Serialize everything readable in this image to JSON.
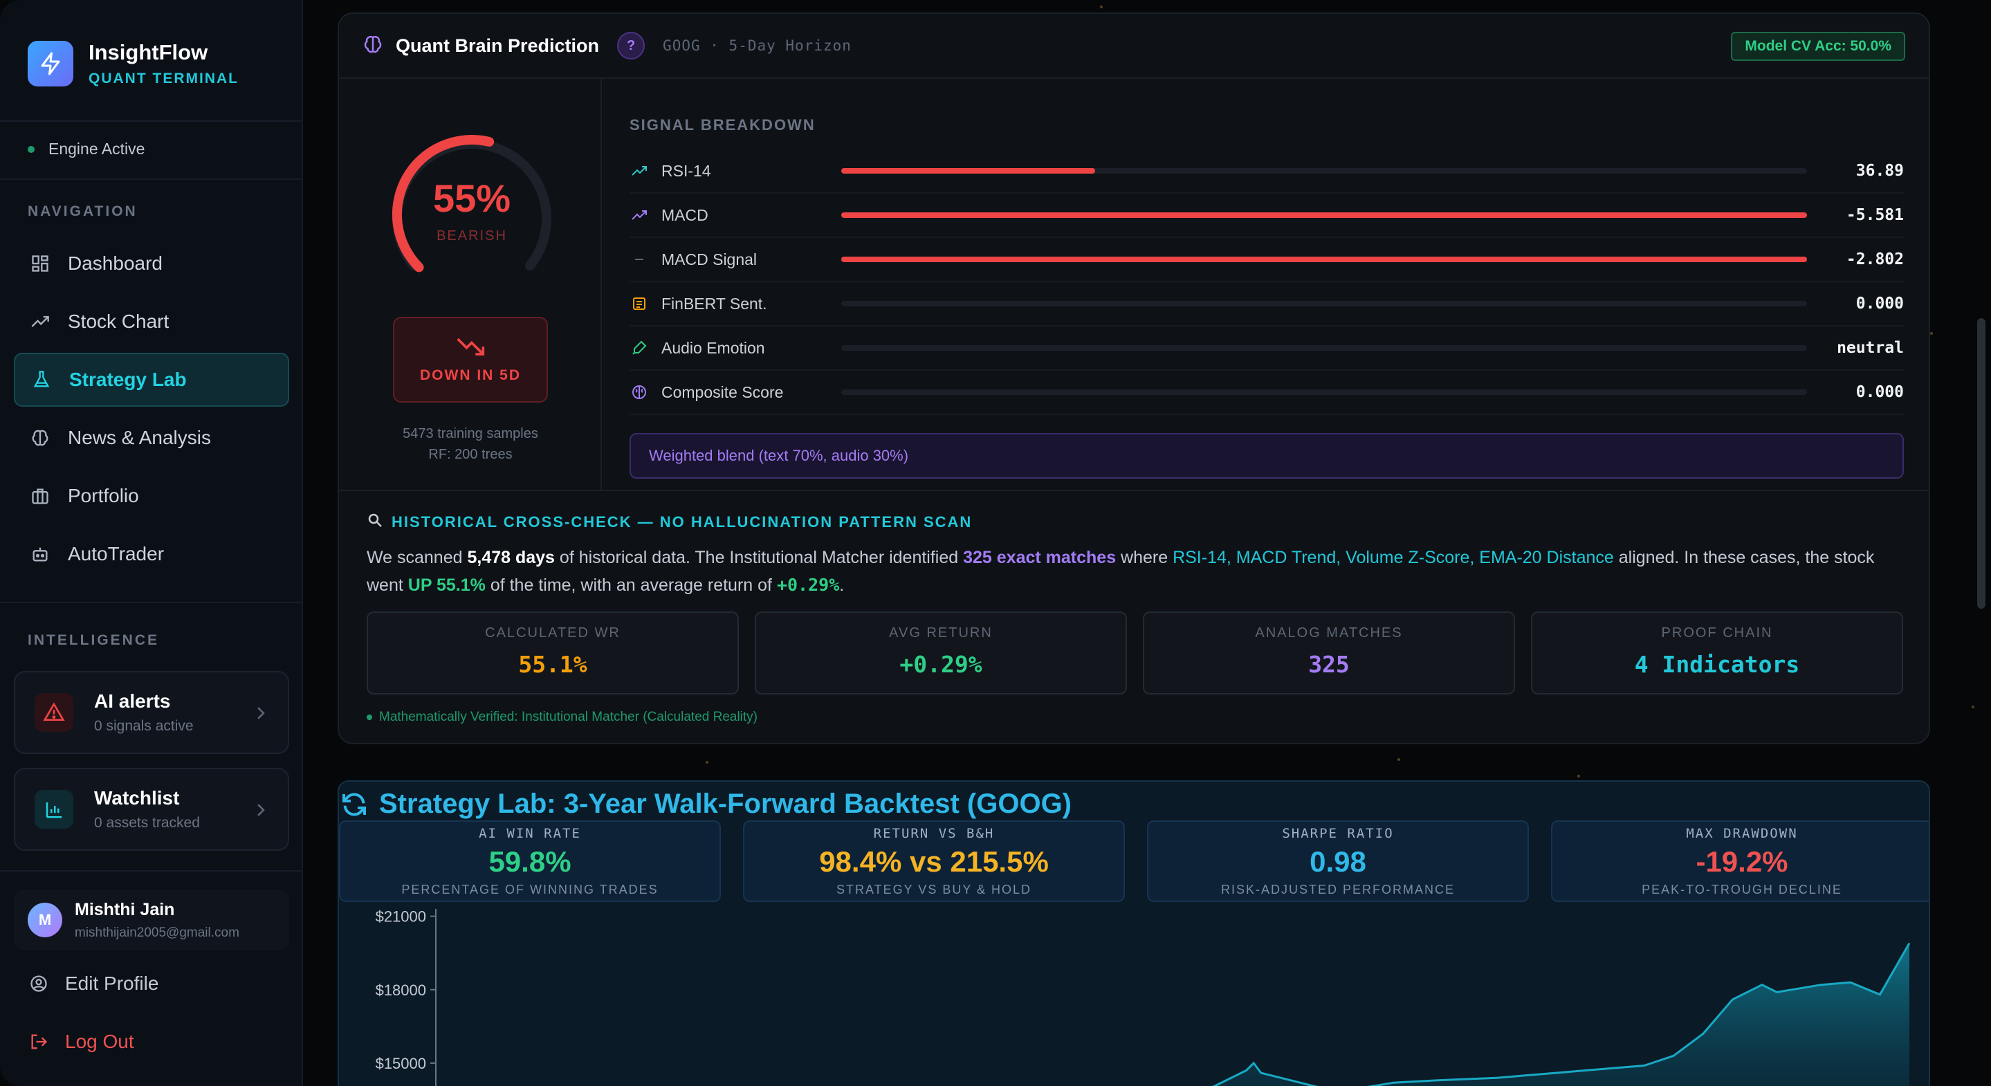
{
  "sidebar": {
    "brand_name": "InsightFlow",
    "brand_sub": "QUANT TERMINAL",
    "engine_status": "Engine Active",
    "nav_label": "NAVIGATION",
    "nav": [
      {
        "label": "Dashboard",
        "icon": "grid-icon"
      },
      {
        "label": "Stock Chart",
        "icon": "trend-icon"
      },
      {
        "label": "Strategy Lab",
        "icon": "flask-icon"
      },
      {
        "label": "News & Analysis",
        "icon": "brain-icon"
      },
      {
        "label": "Portfolio",
        "icon": "briefcase-icon"
      },
      {
        "label": "AutoTrader",
        "icon": "bot-icon"
      }
    ],
    "intel_label": "INTELLIGENCE",
    "alerts": {
      "title": "AI alerts",
      "sub": "0 signals active"
    },
    "watchlist": {
      "title": "Watchlist",
      "sub": "0 assets tracked"
    },
    "user": {
      "initial": "M",
      "name": "Mishthi Jain",
      "email": "mishthijain2005@gmail.com"
    },
    "edit_profile": "Edit Profile",
    "logout": "Log Out"
  },
  "prediction": {
    "title": "Quant Brain Prediction",
    "help": "?",
    "subtitle": "GOOG · 5-Day Horizon",
    "accuracy": "Model CV Acc: 50.0%",
    "gauge_pct": "55%",
    "gauge_fraction": 0.55,
    "gauge_label": "BEARISH",
    "direction": "DOWN IN 5D",
    "training_samples": "5473 training samples",
    "rf_trees": "RF: 200 trees",
    "signal_title": "SIGNAL BREAKDOWN",
    "signals": [
      {
        "name": "RSI-14",
        "value": "36.89",
        "fill": 0.2626,
        "icon": "trend-up-icon",
        "color": "#2ec7c9"
      },
      {
        "name": "MACD",
        "value": "-5.581",
        "fill": 1.0,
        "icon": "trend-up-icon",
        "color": "#a47cf5"
      },
      {
        "name": "MACD Signal",
        "value": "-2.802",
        "fill": 1.0,
        "icon": "minus-icon",
        "color": "#5d6674"
      },
      {
        "name": "FinBERT Sent.",
        "value": "0.000",
        "fill": 0,
        "icon": "newspaper-icon",
        "color": "#f59e0b"
      },
      {
        "name": "Audio Emotion",
        "value": "neutral",
        "fill": 0,
        "icon": "mic-icon",
        "color": "#2ecf86"
      },
      {
        "name": "Composite Score",
        "value": "0.000",
        "fill": 0,
        "icon": "brain-icon",
        "color": "#a47cf5"
      }
    ],
    "blend": "Weighted blend (text 70%, audio 30%)"
  },
  "history": {
    "title": "HISTORICAL CROSS-CHECK — NO HALLUCINATION PATTERN SCAN",
    "t1": "We scanned ",
    "days": "5,478 days",
    "t2": " of historical data. The Institutional Matcher identified ",
    "matches": "325 exact matches",
    "t3": " where ",
    "indicators": "RSI-14, MACD Trend, Volume Z-Score, EMA-20 Distance",
    "t4": " aligned. In these cases, the stock went ",
    "up": "UP 55.1%",
    "t5": " of the time, with an average return of ",
    "avg": "+0.29%",
    "t6": ".",
    "stats": [
      {
        "label": "CALCULATED WR",
        "value": "55.1%",
        "color": "#f59e0b"
      },
      {
        "label": "AVG RETURN",
        "value": "+0.29%",
        "color": "#2ecf86"
      },
      {
        "label": "ANALOG MATCHES",
        "value": "325",
        "color": "#a47cf5"
      },
      {
        "label": "PROOF CHAIN",
        "value": "4 Indicators",
        "color": "#22c8d9"
      }
    ],
    "verified": "Mathematically Verified: Institutional Matcher (Calculated Reality)"
  },
  "lab": {
    "title": "Strategy Lab: 3-Year Walk-Forward Backtest (GOOG)",
    "kpis": [
      {
        "label": "AI WIN RATE",
        "value": "59.8%",
        "desc": "PERCENTAGE OF WINNING TRADES",
        "color": "#2ecf86"
      },
      {
        "label": "RETURN VS B&H",
        "value": "98.4% vs 215.5%",
        "desc": "STRATEGY VS BUY & HOLD",
        "color": "#f5b324"
      },
      {
        "label": "SHARPE RATIO",
        "value": "0.98",
        "desc": "RISK-ADJUSTED PERFORMANCE",
        "color": "#2fb8e8"
      },
      {
        "label": "MAX DRAWDOWN",
        "value": "-19.2%",
        "desc": "PEAK-TO-TROUGH DECLINE",
        "color": "#f05252"
      }
    ]
  },
  "chart_data": {
    "type": "area",
    "title": "",
    "xlabel": "",
    "ylabel": "",
    "y_ticks": [
      "$21000",
      "$18000",
      "$15000"
    ],
    "y_tick_values": [
      21000,
      18000,
      15000
    ],
    "ylim": [
      13500,
      21300
    ],
    "x": [
      0,
      0.5,
      0.55,
      0.555,
      0.56,
      0.6,
      0.62,
      0.65,
      0.68,
      0.72,
      0.74,
      0.76,
      0.78,
      0.8,
      0.82,
      0.84,
      0.86,
      0.88,
      0.9,
      0.91,
      0.92,
      0.94,
      0.96,
      0.98,
      1.0
    ],
    "values": [
      13000,
      13000,
      14700,
      15000,
      14600,
      14000,
      13900,
      14200,
      14300,
      14400,
      14500,
      14600,
      14700,
      14800,
      14900,
      15300,
      16200,
      17600,
      18200,
      17900,
      18000,
      18200,
      18300,
      17800,
      19900
    ],
    "color": "#18a9c4",
    "grid": false
  }
}
